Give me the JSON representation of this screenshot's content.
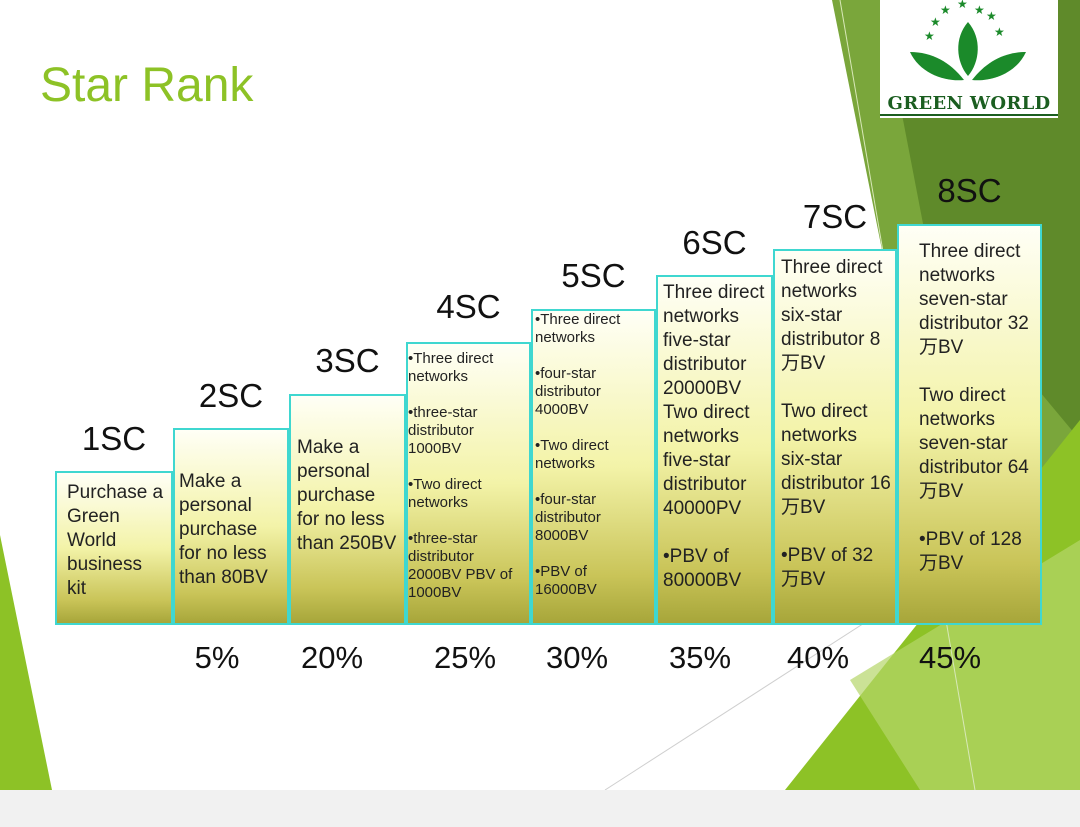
{
  "slide": {
    "title": "Star Rank",
    "logo_text": "GREEN WORLD",
    "accent_color": "#8dc226"
  },
  "ranks": [
    {
      "label": "1SC",
      "text": "Purchase a Green World business kit",
      "percent": ""
    },
    {
      "label": "2SC",
      "text": "Make a personal purchase for no less than 80BV",
      "percent": "5%"
    },
    {
      "label": "3SC",
      "text": "Make a personal purchase for no less than 250BV",
      "percent": "20%"
    },
    {
      "label": "4SC",
      "text": "•Three direct networks\n\n•three-star distributor 1000BV\n\n•Two direct networks\n\n•three-star distributor 2000BV PBV of 1000BV",
      "percent": "25%"
    },
    {
      "label": "5SC",
      "text": "•Three direct networks\n\n•four-star distributor 4000BV\n\n•Two direct networks\n\n•four-star distributor 8000BV\n\n•PBV of 16000BV",
      "percent": "30%"
    },
    {
      "label": "6SC",
      "text": "Three direct networks five-star distributor 20000BV\nTwo direct networks five-star distributor 40000PV\n\n•PBV of 80000BV",
      "percent": "35%"
    },
    {
      "label": "7SC",
      "text": "Three direct networks six-star distributor 8万BV\n\nTwo direct networks six-star distributor 16万BV\n\n•PBV of 32万BV",
      "percent": "40%"
    },
    {
      "label": "8SC",
      "text": "Three direct networks seven-star distributor 32万BV\n\nTwo direct networks seven-star distributor 64万BV\n\n•PBV of 128万BV",
      "percent": "45%"
    }
  ]
}
